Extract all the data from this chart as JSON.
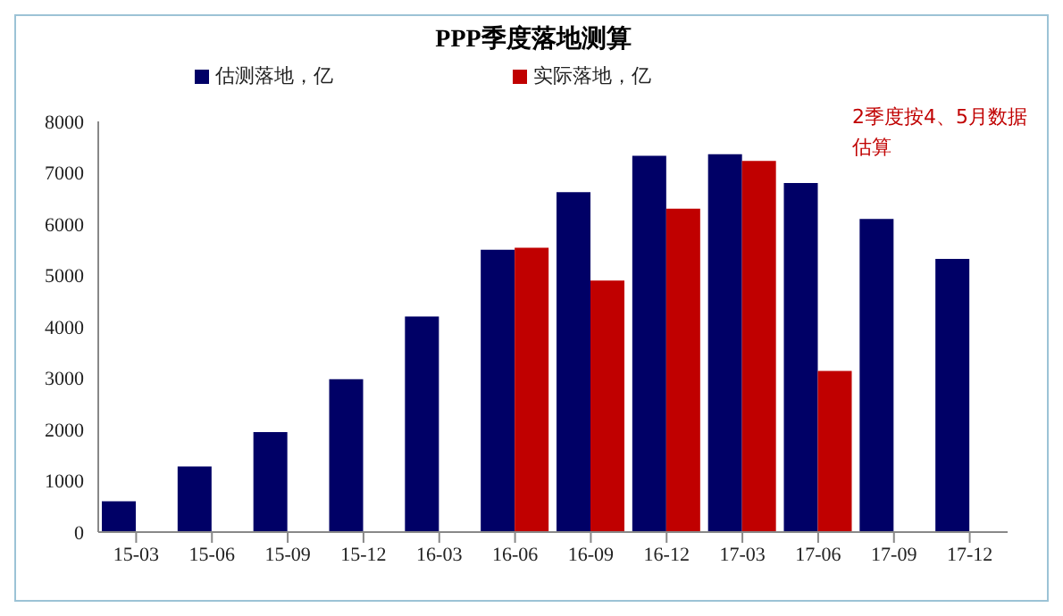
{
  "chart_data": {
    "type": "bar",
    "title": "PPP季度落地测算",
    "categories": [
      "15-03",
      "15-06",
      "15-09",
      "15-12",
      "16-03",
      "16-06",
      "16-09",
      "16-12",
      "17-03",
      "17-06",
      "17-09",
      "17-12"
    ],
    "series": [
      {
        "name": "估测落地，亿",
        "color": "#000066",
        "values": [
          600,
          1280,
          1950,
          2980,
          4200,
          5500,
          6620,
          7330,
          7360,
          6800,
          6100,
          5320
        ]
      },
      {
        "name": "实际落地，亿",
        "color": "#c00000",
        "values": [
          null,
          null,
          null,
          null,
          null,
          5540,
          4900,
          6300,
          7230,
          3140,
          null,
          null
        ]
      }
    ],
    "ylim": [
      0,
      8000
    ],
    "yticks": [
      0,
      1000,
      2000,
      3000,
      4000,
      5000,
      6000,
      7000,
      8000
    ],
    "grid": false,
    "legend": "top",
    "annotations": [
      "2季度按4、5月数据估算"
    ]
  }
}
